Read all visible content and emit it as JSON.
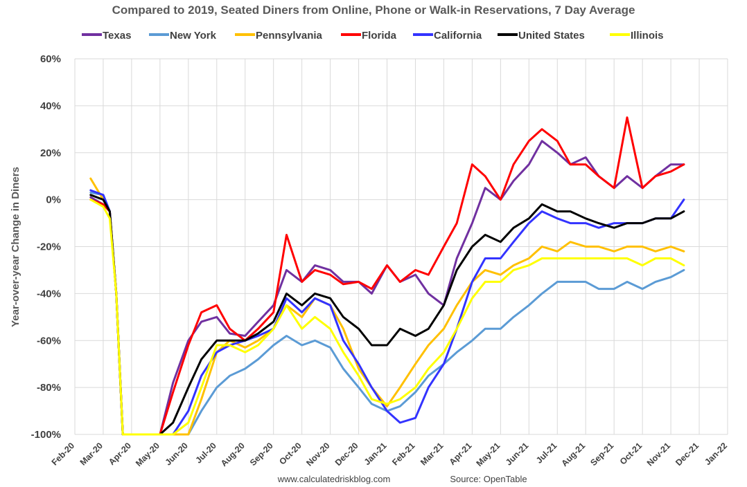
{
  "chart_data": {
    "type": "line",
    "title": "Compared to 2019, Seated Diners from Online, Phone or Walk-in Reservations, 7 Day Average",
    "ylabel": "Year-over-year Change in Diners",
    "xlabel": "",
    "ylim": [
      -100,
      60
    ],
    "yticks": [
      "60%",
      "40%",
      "20%",
      "0%",
      "-20%",
      "-40%",
      "-60%",
      "-80%",
      "-100%"
    ],
    "yticks_values": [
      60,
      40,
      20,
      0,
      -20,
      -40,
      -60,
      -80,
      -100
    ],
    "xticks": [
      "Feb-20",
      "Mar-20",
      "Apr-20",
      "May-20",
      "Jun-20",
      "Jul-20",
      "Aug-20",
      "Sep-20",
      "Oct-20",
      "Nov-20",
      "Dec-20",
      "Jan-21",
      "Feb-21",
      "Mar-21",
      "Apr-21",
      "May-21",
      "Jun-21",
      "Jul-21",
      "Aug-21",
      "Sep-21",
      "Oct-21",
      "Nov-21",
      "Dec-21",
      "Jan-22"
    ],
    "grid": true,
    "legend_position": "top",
    "x": [
      "2020-02-18",
      "2020-03-01",
      "2020-03-08",
      "2020-03-15",
      "2020-03-22",
      "2020-04-01",
      "2020-04-15",
      "2020-05-01",
      "2020-05-15",
      "2020-06-01",
      "2020-06-15",
      "2020-07-01",
      "2020-07-15",
      "2020-08-01",
      "2020-08-15",
      "2020-09-01",
      "2020-09-15",
      "2020-10-01",
      "2020-10-15",
      "2020-11-01",
      "2020-11-15",
      "2020-12-01",
      "2020-12-15",
      "2021-01-01",
      "2021-01-15",
      "2021-02-01",
      "2021-02-15",
      "2021-03-01",
      "2021-03-15",
      "2021-04-01",
      "2021-04-15",
      "2021-05-01",
      "2021-05-15",
      "2021-06-01",
      "2021-06-15",
      "2021-07-01",
      "2021-07-15",
      "2021-08-01",
      "2021-08-15",
      "2021-09-01",
      "2021-09-15",
      "2021-10-01",
      "2021-10-15",
      "2021-11-01",
      "2021-11-15"
    ],
    "series": [
      {
        "name": "Texas",
        "color": "#7030A0",
        "values": [
          1,
          -2,
          -5,
          -40,
          -100,
          -100,
          -100,
          -100,
          -78,
          -60,
          -52,
          -50,
          -57,
          -58,
          -52,
          -45,
          -30,
          -35,
          -28,
          -30,
          -35,
          -35,
          -40,
          -28,
          -35,
          -32,
          -40,
          -45,
          -25,
          -10,
          5,
          0,
          8,
          15,
          25,
          20,
          15,
          18,
          10,
          5,
          10,
          5,
          10,
          15,
          15
        ]
      },
      {
        "name": "New York",
        "color": "#5B9BD5",
        "values": [
          3,
          2,
          -5,
          -40,
          -100,
          -100,
          -100,
          -100,
          -100,
          -100,
          -90,
          -80,
          -75,
          -72,
          -68,
          -62,
          -58,
          -62,
          -60,
          -63,
          -72,
          -80,
          -87,
          -90,
          -88,
          -82,
          -75,
          -70,
          -65,
          -60,
          -55,
          -55,
          -50,
          -45,
          -40,
          -35,
          -35,
          -35,
          -38,
          -38,
          -35,
          -38,
          -35,
          -33,
          -30
        ]
      },
      {
        "name": "Pennsylvania",
        "color": "#FFC000",
        "values": [
          9,
          0,
          -5,
          -40,
          -100,
          -100,
          -100,
          -100,
          -100,
          -100,
          -85,
          -65,
          -60,
          -63,
          -60,
          -55,
          -45,
          -50,
          -42,
          -45,
          -55,
          -72,
          -80,
          -88,
          -80,
          -70,
          -62,
          -55,
          -45,
          -35,
          -30,
          -32,
          -28,
          -25,
          -20,
          -22,
          -18,
          -20,
          -20,
          -22,
          -20,
          -20,
          -22,
          -20,
          -22
        ]
      },
      {
        "name": "Florida",
        "color": "#FF0000",
        "values": [
          0,
          -2,
          -5,
          -40,
          -100,
          -100,
          -100,
          -100,
          -82,
          -62,
          -48,
          -45,
          -55,
          -60,
          -55,
          -48,
          -15,
          -35,
          -30,
          -32,
          -36,
          -35,
          -38,
          -28,
          -35,
          -30,
          -32,
          -20,
          -10,
          15,
          10,
          0,
          15,
          25,
          30,
          25,
          15,
          15,
          10,
          5,
          35,
          5,
          10,
          12,
          15
        ]
      },
      {
        "name": "California",
        "color": "#3333FF",
        "values": [
          4,
          2,
          -5,
          -40,
          -100,
          -100,
          -100,
          -100,
          -100,
          -90,
          -75,
          -65,
          -62,
          -60,
          -58,
          -55,
          -42,
          -48,
          -42,
          -45,
          -60,
          -70,
          -80,
          -90,
          -95,
          -93,
          -80,
          -70,
          -55,
          -35,
          -25,
          -25,
          -18,
          -10,
          -5,
          -8,
          -10,
          -10,
          -12,
          -10,
          -10,
          -10,
          -8,
          -8,
          0
        ]
      },
      {
        "name": "United States",
        "color": "#000000",
        "values": [
          2,
          0,
          -5,
          -40,
          -100,
          -100,
          -100,
          -100,
          -95,
          -80,
          -68,
          -60,
          -60,
          -60,
          -57,
          -52,
          -40,
          -45,
          -40,
          -42,
          -50,
          -55,
          -62,
          -62,
          -55,
          -58,
          -55,
          -45,
          -30,
          -20,
          -15,
          -18,
          -12,
          -8,
          -2,
          -5,
          -5,
          -8,
          -10,
          -12,
          -10,
          -10,
          -8,
          -8,
          -5
        ]
      },
      {
        "name": "Illinois",
        "color": "#FFFF00",
        "values": [
          0,
          -3,
          -8,
          -40,
          -100,
          -100,
          -100,
          -100,
          -100,
          -95,
          -80,
          -62,
          -62,
          -65,
          -62,
          -55,
          -45,
          -55,
          -50,
          -55,
          -65,
          -75,
          -85,
          -87,
          -85,
          -80,
          -72,
          -65,
          -55,
          -42,
          -35,
          -35,
          -30,
          -28,
          -25,
          -25,
          -25,
          -25,
          -25,
          -25,
          -25,
          -28,
          -25,
          -25,
          -28
        ]
      }
    ]
  },
  "footer": {
    "website": "www.calculatedriskblog.com",
    "source": "Source: OpenTable"
  }
}
